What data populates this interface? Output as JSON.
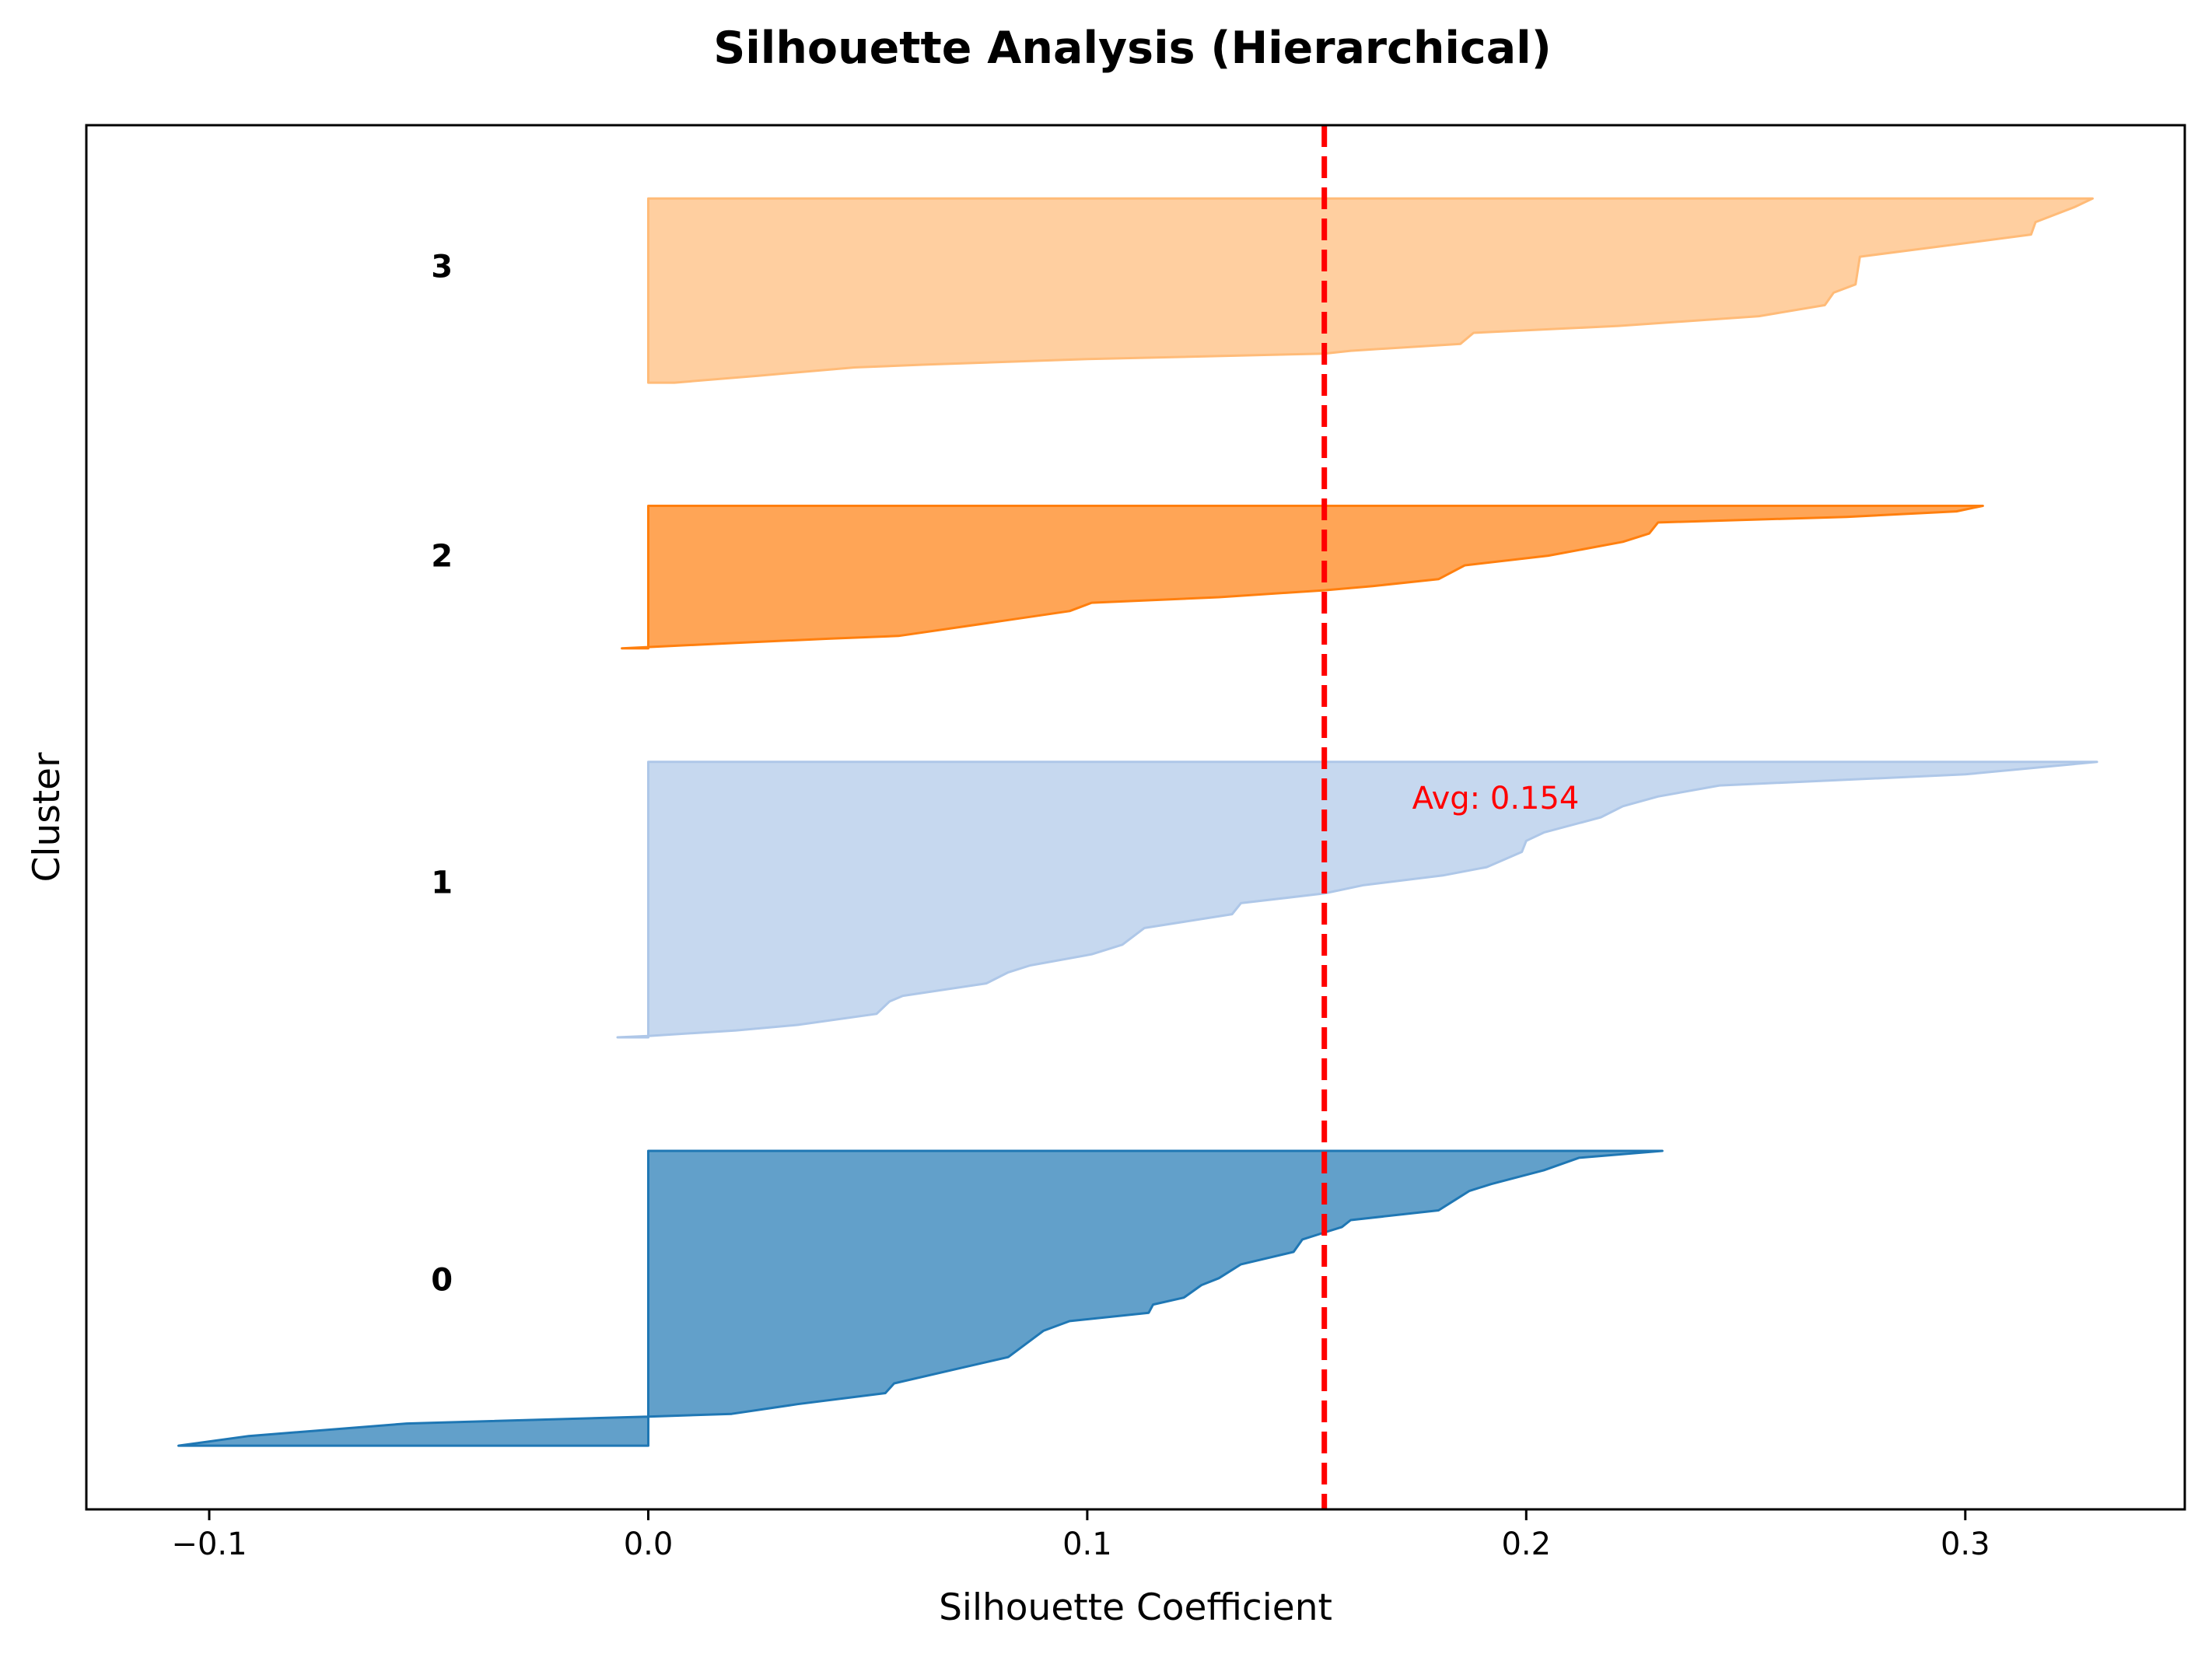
{
  "chart_data": {
    "type": "area",
    "title": "Silhouette Analysis (Hierarchical)",
    "xlabel": "Silhouette Coefficient",
    "ylabel": "Cluster",
    "xlim": [
      -0.128,
      0.35
    ],
    "ylim": [
      0,
      100
    ],
    "xticks": [
      {
        "value": -0.1,
        "label": "−0.1"
      },
      {
        "value": 0.0,
        "label": "0.0"
      },
      {
        "value": 0.1,
        "label": "0.1"
      },
      {
        "value": 0.2,
        "label": "0.2"
      },
      {
        "value": 0.3,
        "label": "0.3"
      }
    ],
    "average": {
      "value": 0.154,
      "label": "Avg: 0.154",
      "color": "#ff0000",
      "label_x": 0.174,
      "label_y": 51.4
    },
    "clusters": [
      {
        "name": "0",
        "color": "#1f77b4",
        "label_x": -0.047,
        "label_y": 16.6,
        "points": [
          [
            -0.107,
            4.6
          ],
          [
            -0.091,
            5.3
          ],
          [
            -0.055,
            6.2
          ],
          [
            0.0,
            6.7
          ],
          [
            0.019,
            6.9
          ],
          [
            0.034,
            7.6
          ],
          [
            0.054,
            8.4
          ],
          [
            0.056,
            9.1
          ],
          [
            0.071,
            10.2
          ],
          [
            0.082,
            11.0
          ],
          [
            0.09,
            12.9
          ],
          [
            0.096,
            13.6
          ],
          [
            0.114,
            14.2
          ],
          [
            0.115,
            14.8
          ],
          [
            0.122,
            15.3
          ],
          [
            0.126,
            16.2
          ],
          [
            0.13,
            16.7
          ],
          [
            0.135,
            17.7
          ],
          [
            0.147,
            18.6
          ],
          [
            0.149,
            19.5
          ],
          [
            0.154,
            20.0
          ],
          [
            0.158,
            20.4
          ],
          [
            0.16,
            20.9
          ],
          [
            0.18,
            21.6
          ],
          [
            0.184,
            22.4
          ],
          [
            0.187,
            23.0
          ],
          [
            0.192,
            23.5
          ],
          [
            0.204,
            24.5
          ],
          [
            0.212,
            25.4
          ],
          [
            0.231,
            25.9
          ]
        ]
      },
      {
        "name": "1",
        "color": "#aec7e8",
        "label_x": -0.047,
        "label_y": 45.3,
        "points": [
          [
            -0.007,
            34.1
          ],
          [
            0.0,
            34.2
          ],
          [
            0.02,
            34.6
          ],
          [
            0.034,
            35.0
          ],
          [
            0.052,
            35.8
          ],
          [
            0.055,
            36.7
          ],
          [
            0.058,
            37.1
          ],
          [
            0.077,
            38.0
          ],
          [
            0.082,
            38.8
          ],
          [
            0.087,
            39.3
          ],
          [
            0.101,
            40.1
          ],
          [
            0.108,
            40.8
          ],
          [
            0.113,
            42.0
          ],
          [
            0.133,
            43.0
          ],
          [
            0.135,
            43.8
          ],
          [
            0.154,
            44.5
          ],
          [
            0.163,
            45.1
          ],
          [
            0.181,
            45.8
          ],
          [
            0.191,
            46.4
          ],
          [
            0.199,
            47.5
          ],
          [
            0.2,
            48.3
          ],
          [
            0.204,
            48.9
          ],
          [
            0.217,
            50.0
          ],
          [
            0.222,
            50.8
          ],
          [
            0.23,
            51.5
          ],
          [
            0.244,
            52.3
          ],
          [
            0.3,
            53.1
          ],
          [
            0.33,
            54.0
          ]
        ]
      },
      {
        "name": "2",
        "color": "#ff7f0e",
        "label_x": -0.047,
        "label_y": 68.9,
        "points": [
          [
            -0.006,
            62.2
          ],
          [
            0.0,
            62.3
          ],
          [
            0.02,
            62.6
          ],
          [
            0.041,
            62.9
          ],
          [
            0.057,
            63.1
          ],
          [
            0.081,
            64.2
          ],
          [
            0.096,
            64.9
          ],
          [
            0.101,
            65.5
          ],
          [
            0.13,
            65.9
          ],
          [
            0.154,
            66.4
          ],
          [
            0.165,
            66.7
          ],
          [
            0.18,
            67.2
          ],
          [
            0.186,
            68.2
          ],
          [
            0.205,
            68.9
          ],
          [
            0.222,
            69.9
          ],
          [
            0.228,
            70.5
          ],
          [
            0.23,
            71.3
          ],
          [
            0.273,
            71.7
          ],
          [
            0.298,
            72.1
          ],
          [
            0.304,
            72.5
          ]
        ]
      },
      {
        "name": "3",
        "color": "#ffbb78",
        "label_x": -0.047,
        "label_y": 89.8,
        "points": [
          [
            0.0,
            81.4
          ],
          [
            0.006,
            81.4
          ],
          [
            0.025,
            81.9
          ],
          [
            0.047,
            82.5
          ],
          [
            0.063,
            82.7
          ],
          [
            0.1,
            83.1
          ],
          [
            0.154,
            83.5
          ],
          [
            0.16,
            83.7
          ],
          [
            0.185,
            84.2
          ],
          [
            0.188,
            85.0
          ],
          [
            0.221,
            85.5
          ],
          [
            0.253,
            86.2
          ],
          [
            0.268,
            87.0
          ],
          [
            0.27,
            87.9
          ],
          [
            0.275,
            88.5
          ],
          [
            0.276,
            90.5
          ],
          [
            0.303,
            91.6
          ],
          [
            0.315,
            92.1
          ],
          [
            0.316,
            93.0
          ],
          [
            0.325,
            94.1
          ],
          [
            0.329,
            94.7
          ]
        ]
      }
    ]
  }
}
